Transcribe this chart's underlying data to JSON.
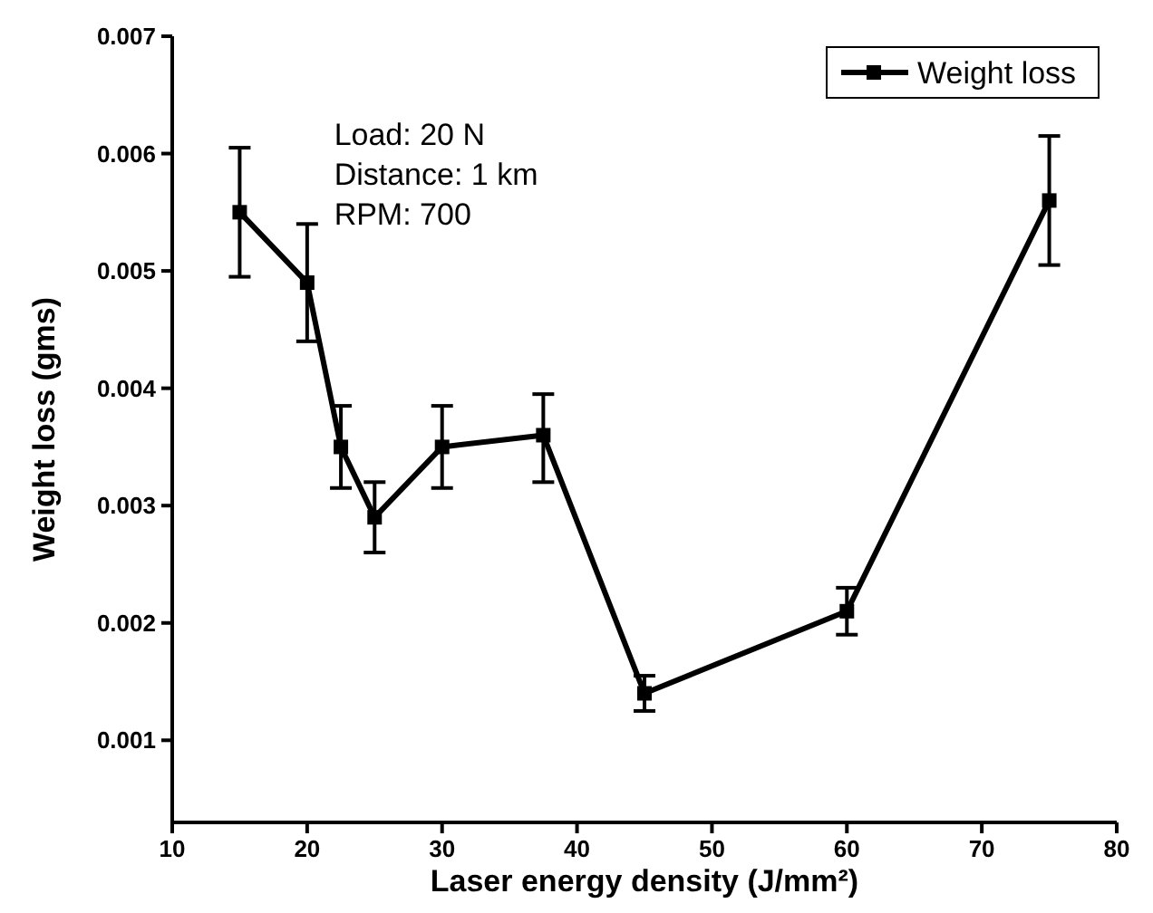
{
  "chart_data": {
    "type": "line",
    "xlabel": "Laser energy density (J/mm²)",
    "ylabel": "Weight loss (gms)",
    "x": [
      15,
      20,
      22.5,
      25,
      30,
      37.5,
      45,
      60,
      75
    ],
    "series": [
      {
        "name": "Weight loss",
        "color": "#000000",
        "values": [
          0.0055,
          0.0049,
          0.0035,
          0.0029,
          0.0035,
          0.0036,
          0.0014,
          0.0021,
          0.0056
        ],
        "errors": [
          [
            0.00495,
            0.00605
          ],
          [
            0.0044,
            0.0054
          ],
          [
            0.00315,
            0.00385
          ],
          [
            0.0026,
            0.0032
          ],
          [
            0.00315,
            0.00385
          ],
          [
            0.0032,
            0.00395
          ],
          [
            0.00125,
            0.00155
          ],
          [
            0.0019,
            0.0023
          ],
          [
            0.00505,
            0.00615
          ]
        ]
      }
    ],
    "xlim": [
      10,
      80
    ],
    "xticks": [
      10,
      20,
      30,
      40,
      50,
      60,
      70,
      80
    ],
    "ylim": [
      0.0003,
      0.007
    ],
    "yticks": [
      0.001,
      0.002,
      0.003,
      0.004,
      0.005,
      0.006,
      0.007
    ],
    "annotations": [
      "Load: 20 N",
      "Distance: 1 km",
      "RPM: 700"
    ],
    "legend": "top right",
    "marker": "square",
    "line_style": "solid",
    "grid": false
  }
}
